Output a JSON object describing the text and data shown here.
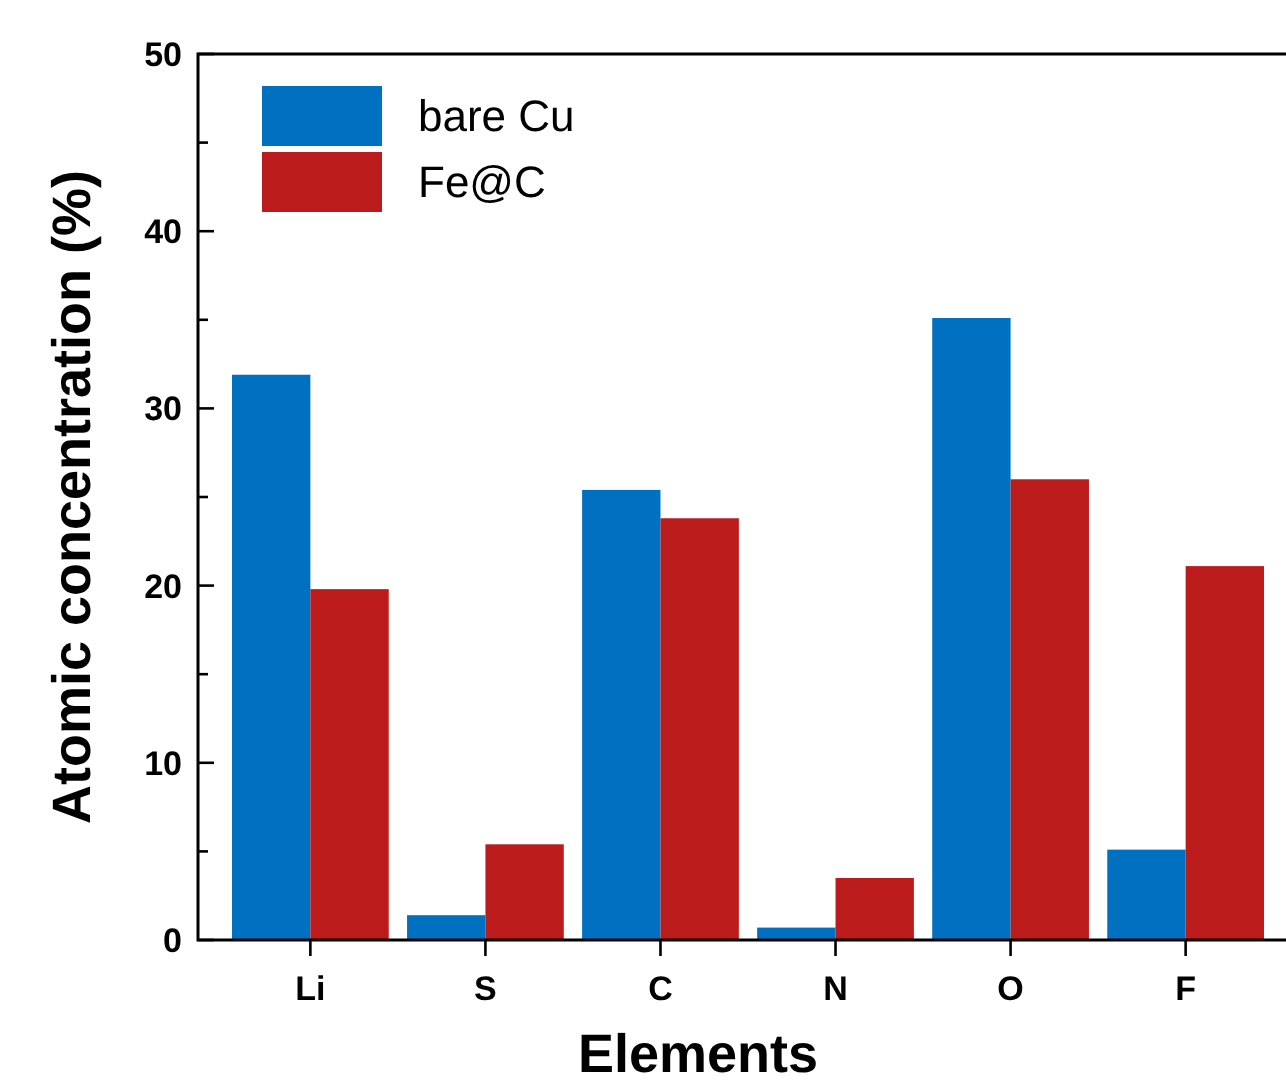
{
  "chart_data": {
    "type": "bar",
    "xlabel": "Elements",
    "ylabel": "Atomic concentration (%)",
    "categories": [
      "Li",
      "S",
      "C",
      "N",
      "O",
      "F"
    ],
    "series": [
      {
        "name": "bare Cu",
        "color": "#0070c0",
        "values": [
          31.9,
          1.4,
          25.4,
          0.7,
          35.1,
          5.1
        ]
      },
      {
        "name": "Fe@C",
        "color": "#bc1b1b",
        "values": [
          19.8,
          5.4,
          23.8,
          3.5,
          26.0,
          21.1
        ]
      }
    ],
    "ylim": [
      0,
      50
    ],
    "yticks": [
      0,
      {
        "value": 5,
        "label": null
      },
      10,
      {
        "value": 15,
        "label": null
      },
      20,
      {
        "value": 25,
        "label": null
      },
      30,
      {
        "value": 35,
        "label": null
      },
      40,
      {
        "value": 45,
        "label": null
      },
      50
    ],
    "grid": false,
    "legend": "top left"
  }
}
